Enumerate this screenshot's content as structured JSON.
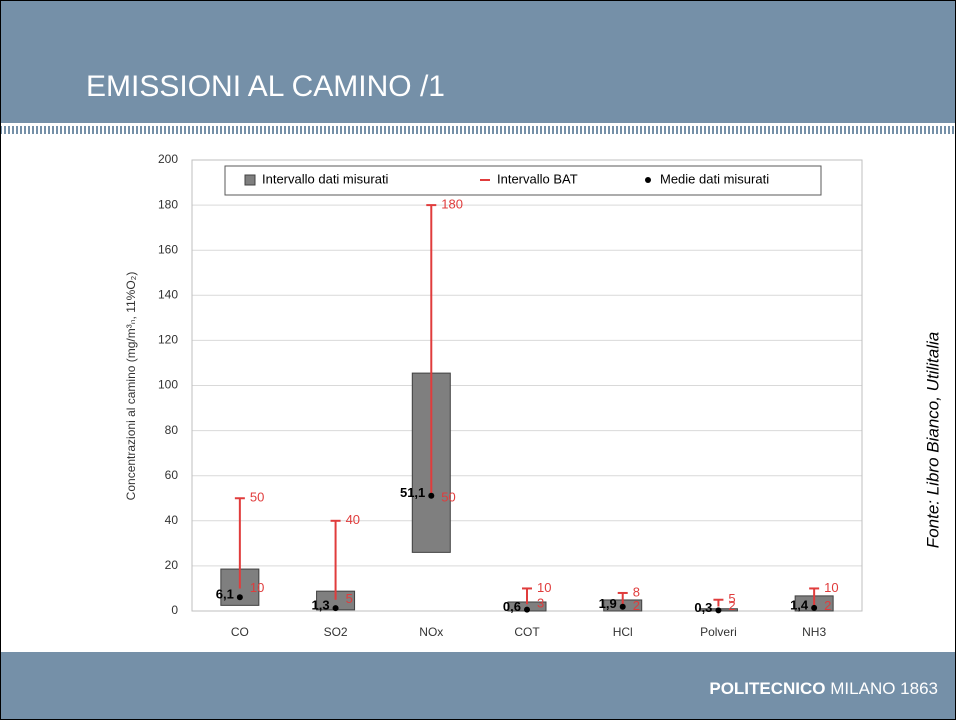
{
  "title": "EMISSIONI AL CAMINO /1",
  "source": "Fonte: Libro Bianco, Utilitalia",
  "footer": {
    "brand": "POLITECNICO",
    "place": "MILANO 1863"
  },
  "chart_data": {
    "type": "floating_bar",
    "y_label": "Concentrazioni  al camino (mg/m³ₙ, 11%O₂)",
    "categories": [
      "CO",
      "SO2",
      "NOx",
      "COT",
      "HCl",
      "Polveri",
      "NH3"
    ],
    "series": [
      {
        "name": "Intervallo dati misurati",
        "color": "#7f7f7f",
        "low": [
          2.5,
          0.5,
          26,
          0,
          0,
          0,
          0
        ],
        "high": [
          18.6,
          8.8,
          105.5,
          4,
          4.9,
          1,
          6.7
        ]
      },
      {
        "name": "Intervallo BAT",
        "color": "#e03c3c",
        "low": [
          10,
          5,
          50,
          3,
          2,
          2,
          2
        ],
        "high": [
          50,
          40,
          180,
          10,
          8,
          5,
          10
        ]
      },
      {
        "name": "Medie dati misurati",
        "color": "#000000",
        "values": [
          6.1,
          1.3,
          51.1,
          0.6,
          1.9,
          0.3,
          1.4
        ],
        "value_labels": [
          "6,1",
          "1,3",
          "51,1",
          "0,6",
          "1,9",
          "0,3",
          "1,4"
        ]
      }
    ],
    "ylim": [
      0,
      200
    ],
    "yticks": [
      0,
      20,
      40,
      60,
      80,
      100,
      120,
      140,
      160,
      180,
      200
    ],
    "grid": true,
    "legend": "top"
  }
}
